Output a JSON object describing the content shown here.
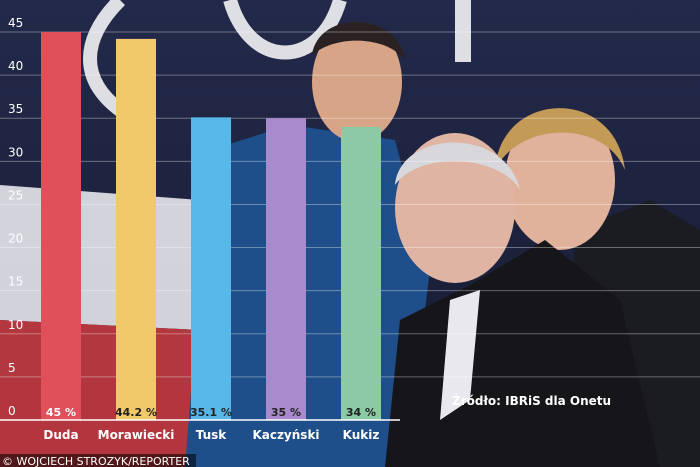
{
  "chart_data": {
    "type": "bar",
    "title": "",
    "xlabel": "",
    "ylabel": "",
    "ylim": [
      0,
      45
    ],
    "yticks": [
      0,
      5,
      10,
      15,
      20,
      25,
      30,
      35,
      40,
      45
    ],
    "grid": true,
    "categories": [
      "Duda",
      "Morawiecki",
      "Tusk",
      "Kaczyński",
      "Kukiz"
    ],
    "values": [
      45,
      44.2,
      35.1,
      35,
      34
    ],
    "value_labels": [
      "45 %",
      "44.2 %",
      "35.1 %",
      "35 %",
      "34 %"
    ],
    "colors": [
      "#e0505a",
      "#f1c96a",
      "#57b7e6",
      "#a98bcd",
      "#8cc9a5"
    ],
    "value_label_colors": [
      "#ffffff",
      "#222222",
      "#222222",
      "#222222",
      "#222222"
    ]
  },
  "source_note": "Źródło: IBRiS dla Onetu",
  "photo_credit": "© WOJCIECH STROZYK/REPORTER"
}
